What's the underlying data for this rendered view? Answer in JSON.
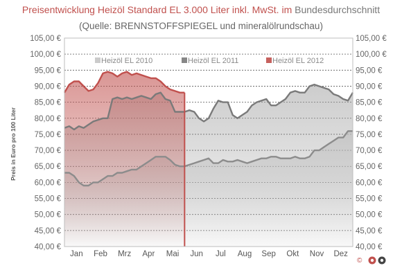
{
  "chart_data": {
    "type": "area",
    "title_parts": [
      {
        "text": "Preisentwicklung Heizöl Standard EL 3.000 Liter inkl. MwSt. im ",
        "color": "#c0504d"
      },
      {
        "text": "Bundesdurchschnitt",
        "color": "#777777"
      }
    ],
    "subtitle": "(Quelle: BRENNSTOFFSPIEGEL und mineralölrundschau)",
    "ylabel": "Preis in Euro pro 100 Liter",
    "ylim": [
      40,
      105
    ],
    "y_ticks": [
      40,
      45,
      50,
      55,
      60,
      65,
      70,
      75,
      80,
      85,
      90,
      95,
      100,
      105
    ],
    "y_tick_labels": [
      "40,00 €",
      "45,00 €",
      "50,00 €",
      "55,00 €",
      "60,00 €",
      "65,00 €",
      "70,00 €",
      "75,00 €",
      "80,00 €",
      "85,00 €",
      "90,00 €",
      "95,00 €",
      "100,00 €",
      "105,00 €"
    ],
    "categories": [
      "Jan",
      "Feb",
      "Mrz",
      "Apr",
      "Mai",
      "Jun",
      "Jul",
      "Aug",
      "Sep",
      "Okt",
      "Nov",
      "Dez"
    ],
    "x_range": [
      0,
      12
    ],
    "grid": "dashed horizontal",
    "legend_position": "top",
    "series": [
      {
        "name": "Heizöl EL 2010",
        "color": "#8c8c8c",
        "x": [
          0.0,
          0.2,
          0.4,
          0.6,
          0.8,
          1.0,
          1.2,
          1.4,
          1.6,
          1.8,
          2.0,
          2.2,
          2.4,
          2.6,
          2.8,
          3.0,
          3.2,
          3.4,
          3.6,
          3.8,
          4.0,
          4.2,
          4.4,
          4.6,
          4.8,
          5.0,
          5.2,
          5.4,
          5.6,
          5.8,
          6.0,
          6.2,
          6.4,
          6.6,
          6.8,
          7.0,
          7.2,
          7.4,
          7.6,
          7.8,
          8.0,
          8.2,
          8.4,
          8.6,
          8.8,
          9.0,
          9.2,
          9.4,
          9.6,
          9.8,
          10.0,
          10.2,
          10.4,
          10.6,
          10.8,
          11.0,
          11.2,
          11.4,
          11.6,
          11.8,
          12.0
        ],
        "values": [
          63,
          63,
          62,
          60,
          59,
          59,
          60,
          60,
          61,
          62,
          62,
          63,
          63,
          63.5,
          64,
          64,
          65,
          66,
          67,
          68,
          68,
          68,
          67,
          65.5,
          65,
          65,
          65.5,
          66,
          66.5,
          67,
          67.5,
          66,
          66,
          67,
          66.5,
          66.5,
          67,
          66.5,
          66,
          66.5,
          67,
          67.5,
          67.5,
          68,
          68,
          67.5,
          67.5,
          67.5,
          68,
          67.5,
          67.5,
          68,
          70,
          70,
          71,
          72,
          73,
          74,
          74,
          76,
          76
        ]
      },
      {
        "name": "Heizöl EL 2011",
        "color": "#7a7a7a",
        "x": [
          0.0,
          0.2,
          0.4,
          0.6,
          0.8,
          1.0,
          1.2,
          1.4,
          1.6,
          1.8,
          2.0,
          2.2,
          2.4,
          2.6,
          2.8,
          3.0,
          3.2,
          3.4,
          3.6,
          3.8,
          4.0,
          4.2,
          4.4,
          4.6,
          4.8,
          5.0,
          5.2,
          5.4,
          5.6,
          5.8,
          6.0,
          6.2,
          6.4,
          6.6,
          6.8,
          7.0,
          7.2,
          7.4,
          7.6,
          7.8,
          8.0,
          8.2,
          8.4,
          8.6,
          8.8,
          9.0,
          9.2,
          9.4,
          9.6,
          9.8,
          10.0,
          10.2,
          10.4,
          10.6,
          10.8,
          11.0,
          11.2,
          11.4,
          11.6,
          11.8,
          12.0
        ],
        "values": [
          77,
          77.5,
          76.5,
          77.5,
          77,
          78,
          79,
          79.5,
          80,
          80,
          86,
          86.5,
          86,
          86.5,
          86,
          86.5,
          87,
          86.5,
          86,
          87.5,
          88,
          86,
          85.5,
          82,
          82,
          82,
          82.5,
          82,
          80,
          79,
          80,
          83,
          85.5,
          85,
          85,
          81,
          80,
          81,
          82,
          84,
          85,
          85.5,
          86,
          84,
          84,
          85,
          86,
          88,
          88.5,
          88,
          88,
          90,
          90.5,
          90,
          89.5,
          89,
          87.5,
          87,
          86,
          85.5,
          88
        ]
      },
      {
        "name": "Heizöl EL 2012",
        "color": "#c0504d",
        "x": [
          0.0,
          0.2,
          0.4,
          0.6,
          0.8,
          1.0,
          1.2,
          1.4,
          1.6,
          1.8,
          2.0,
          2.2,
          2.4,
          2.6,
          2.8,
          3.0,
          3.2,
          3.4,
          3.6,
          3.8,
          4.0,
          4.2,
          4.4,
          4.6,
          4.8,
          5.0
        ],
        "values": [
          88,
          90.5,
          91.5,
          91.5,
          90,
          88.5,
          89,
          91,
          94,
          94.5,
          94,
          93,
          94,
          94.5,
          93.5,
          94,
          93.5,
          93,
          92.5,
          92.5,
          91.5,
          90,
          89,
          88.5,
          88,
          88
        ]
      }
    ]
  },
  "logo": {
    "glyph": "©",
    "color": "#c0504d"
  }
}
